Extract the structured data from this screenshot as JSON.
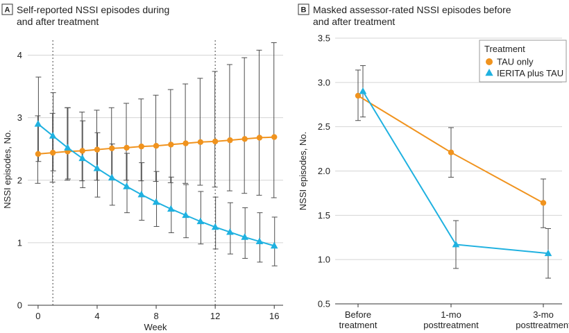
{
  "colors": {
    "tau": "#f0931e",
    "ierita": "#1fb1e0",
    "grid": "#d4d4d4",
    "error_bar": "#4d4d4d"
  },
  "chart_data": [
    {
      "panel": "A",
      "type": "line",
      "title": "Self-reported NSSI episodes during and after treatment",
      "title_lines": [
        "Self-reported NSSI episodes during",
        "and after treatment"
      ],
      "xlabel": "Week",
      "ylabel": "NSSI episodes, No.",
      "xlim": [
        -0.7,
        16.6
      ],
      "ylim": [
        0,
        4.35
      ],
      "xticks": [
        0,
        4,
        8,
        12,
        16
      ],
      "yticks": [
        0,
        1,
        2,
        3,
        4
      ],
      "grid": "horizontal",
      "reference_lines_x": [
        1,
        12
      ],
      "series": [
        {
          "name": "TAU only",
          "marker": "circle",
          "color_key": "tau",
          "x": [
            0,
            1,
            2,
            3,
            4,
            5,
            6,
            7,
            8,
            9,
            10,
            11,
            12,
            13,
            14,
            15,
            16
          ],
          "y": [
            2.42,
            2.44,
            2.46,
            2.47,
            2.49,
            2.51,
            2.52,
            2.54,
            2.55,
            2.57,
            2.59,
            2.61,
            2.62,
            2.64,
            2.66,
            2.68,
            2.69
          ],
          "lower": [
            1.95,
            1.97,
            2.0,
            1.99,
            2.0,
            2.01,
            2.0,
            1.99,
            1.98,
            1.96,
            1.95,
            1.92,
            1.89,
            1.83,
            1.79,
            1.76,
            1.72
          ],
          "upper": [
            3.03,
            3.07,
            3.16,
            3.09,
            3.12,
            3.16,
            3.23,
            3.3,
            3.36,
            3.45,
            3.54,
            3.63,
            3.74,
            3.85,
            3.96,
            4.08,
            4.2
          ]
        },
        {
          "name": "IERITA plus TAU",
          "marker": "triangle",
          "color_key": "ierita",
          "x": [
            0,
            1,
            2,
            3,
            4,
            5,
            6,
            7,
            8,
            9,
            10,
            11,
            12,
            13,
            14,
            15,
            16
          ],
          "y": [
            2.9,
            2.71,
            2.52,
            2.35,
            2.19,
            2.04,
            1.9,
            1.77,
            1.65,
            1.54,
            1.44,
            1.34,
            1.25,
            1.17,
            1.09,
            1.02,
            0.95
          ],
          "lower": [
            2.3,
            2.15,
            2.02,
            1.88,
            1.73,
            1.6,
            1.48,
            1.36,
            1.26,
            1.16,
            1.08,
            0.98,
            0.9,
            0.82,
            0.75,
            0.69,
            0.63
          ],
          "upper": [
            3.65,
            3.4,
            3.16,
            2.95,
            2.76,
            2.58,
            2.43,
            2.28,
            2.14,
            2.05,
            1.93,
            1.82,
            1.73,
            1.64,
            1.56,
            1.48,
            1.41
          ]
        }
      ]
    },
    {
      "panel": "B",
      "type": "line",
      "title": "Masked assessor-rated NSSI episodes before and after treatment",
      "title_lines": [
        "Masked assessor-rated NSSI episodes before",
        "and after treatment"
      ],
      "xlabel": "",
      "ylabel": "NSSI episodes, No.",
      "categories": [
        [
          "Before",
          "treatment"
        ],
        [
          "1-mo",
          "posttreatment"
        ],
        [
          "3-mo",
          "posttreatment"
        ]
      ],
      "ylim": [
        0.5,
        3.5
      ],
      "yticks": [
        "0.5",
        "1.0",
        "1.5",
        "2.0",
        "2.5",
        "3.0",
        "3.5"
      ],
      "grid": "horizontal",
      "legend": {
        "title": "Treatment",
        "position": "top-right",
        "entries": [
          "TAU only",
          "IERITA plus TAU"
        ]
      },
      "series": [
        {
          "name": "TAU only",
          "marker": "circle",
          "color_key": "tau",
          "values": [
            2.85,
            2.21,
            1.64
          ],
          "lower": [
            2.57,
            1.93,
            1.36
          ],
          "upper": [
            3.14,
            2.49,
            1.91
          ]
        },
        {
          "name": "IERITA plus TAU",
          "marker": "triangle",
          "color_key": "ierita",
          "values": [
            2.9,
            1.17,
            1.07
          ],
          "lower": [
            2.61,
            0.9,
            0.79
          ],
          "upper": [
            3.19,
            1.44,
            1.35
          ]
        }
      ]
    }
  ]
}
